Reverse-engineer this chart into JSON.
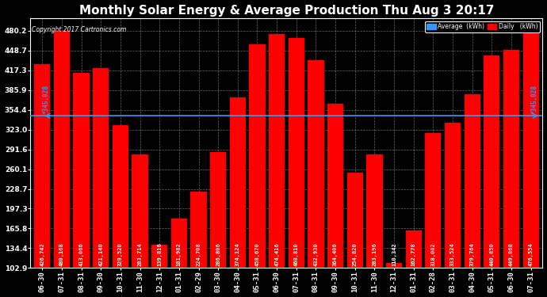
{
  "title": "Monthly Solar Energy & Average Production Thu Aug 3 20:17",
  "copyright": "Copyright 2017 Cartronics.com",
  "categories": [
    "06-30",
    "07-31",
    "08-31",
    "09-30",
    "10-31",
    "11-30",
    "12-31",
    "01-31",
    "02-29",
    "03-30",
    "04-30",
    "05-31",
    "06-30",
    "07-31",
    "08-31",
    "09-30",
    "10-31",
    "11-30",
    "12-31",
    "01-31",
    "02-28",
    "03-31",
    "04-30",
    "05-31",
    "06-30",
    "07-31"
  ],
  "values": [
    426.742,
    480.168,
    413.066,
    421.14,
    329.52,
    283.714,
    139.816,
    181.982,
    224.708,
    286.806,
    374.124,
    458.67,
    474.416,
    468.81,
    432.93,
    364.406,
    254.82,
    283.196,
    110.342,
    162.778,
    318.002,
    333.524,
    379.764,
    440.85,
    449.868,
    476.554
  ],
  "average": 345.028,
  "bar_color": "#ff0000",
  "average_line_color": "#3399ff",
  "background_color": "#000000",
  "plot_bg_color": "#000000",
  "grid_color": "#aaaaaa",
  "text_color": "#ffffff",
  "bar_text_color": "#ffffff",
  "yticks": [
    102.9,
    134.4,
    165.8,
    197.3,
    228.7,
    260.1,
    291.6,
    323.0,
    354.4,
    385.9,
    417.3,
    448.7,
    480.2
  ],
  "ylim": [
    102.9,
    500.0
  ],
  "legend_avg_color": "#3399ff",
  "legend_daily_color": "#ff0000",
  "legend_avg_label": "Average  (kWh)",
  "legend_daily_label": "Daily   (kWh)",
  "title_fontsize": 11,
  "axis_label_fontsize": 6.5,
  "bar_label_fontsize": 5.0,
  "avg_label_fontsize": 5.5
}
